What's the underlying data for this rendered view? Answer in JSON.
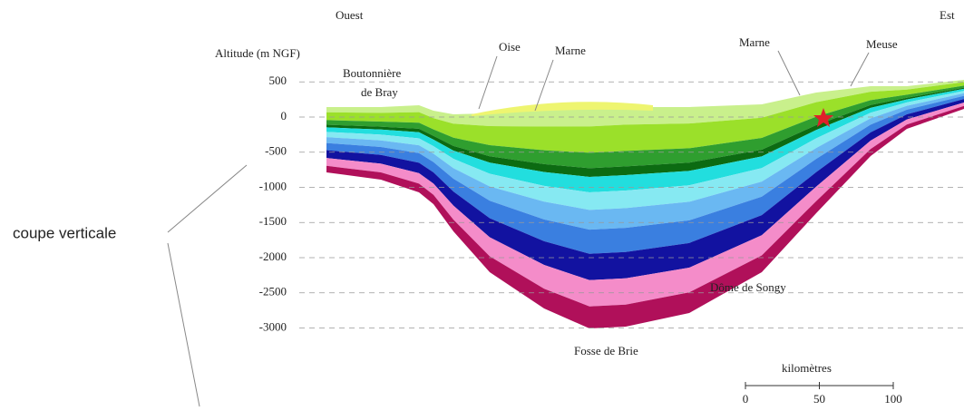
{
  "header": {
    "west": "Ouest",
    "east": "Est"
  },
  "axis": {
    "title": "Altitude (m NGF)",
    "ticks": [
      500,
      0,
      -500,
      -1000,
      -1500,
      -2000,
      -2500,
      -3000
    ]
  },
  "labels": {
    "bray_1": "Boutonnière",
    "bray_2": "de Bray",
    "oise": "Oise",
    "marne_west": "Marne",
    "marne_east": "Marne",
    "meuse": "Meuse",
    "songy": "Dôme de Songy",
    "brie": "Fosse de Brie"
  },
  "scale": {
    "title": "kilomètres",
    "ticks": [
      0,
      50,
      100
    ]
  },
  "callout": "coupe verticale"
}
